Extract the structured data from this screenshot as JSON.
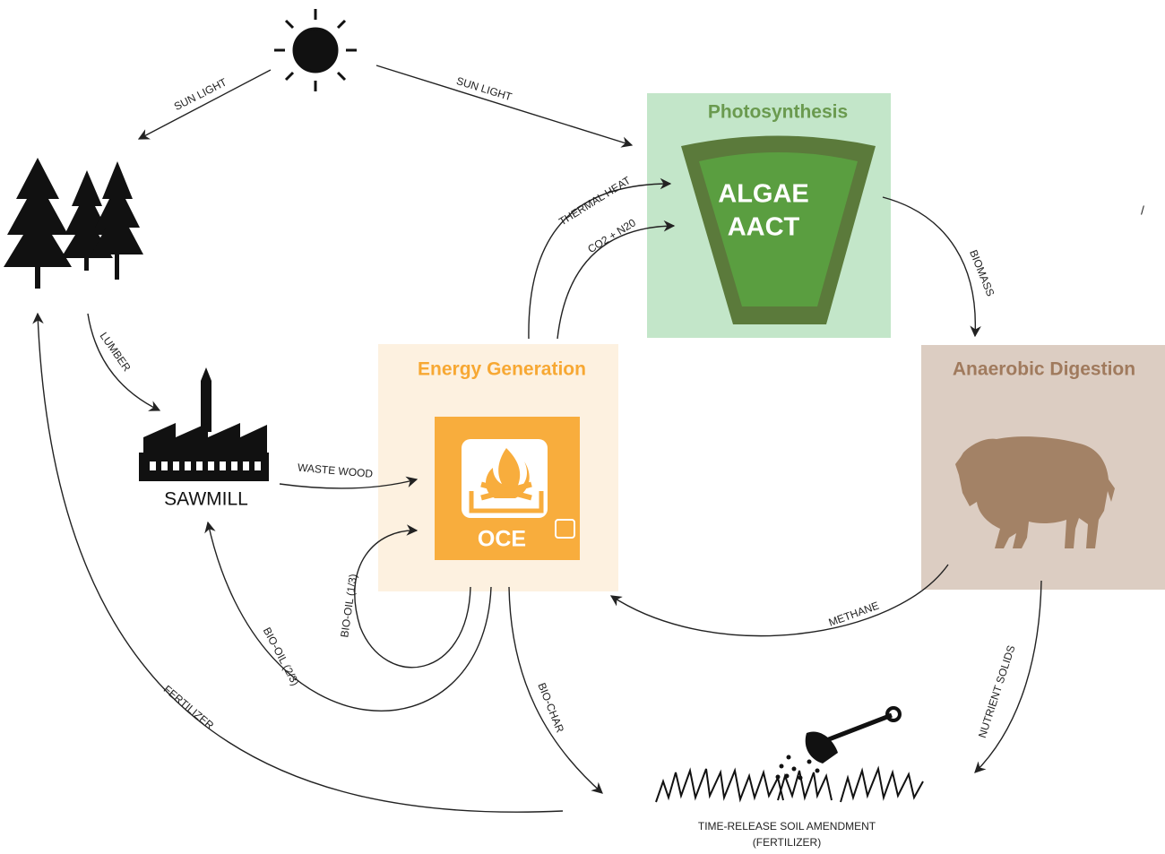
{
  "panels": {
    "photosynthesis": {
      "title": "Photosynthesis",
      "lines": [
        "ALGAE",
        "AACT"
      ]
    },
    "energy_generation": {
      "title": "Energy Generation",
      "label": "OCE"
    },
    "anaerobic_digestion": {
      "title": "Anaerobic Digestion"
    }
  },
  "nodes": {
    "sawmill": "SAWMILL",
    "soil_amendment": [
      "TIME-RELEASE SOIL AMENDMENT",
      "(FERTILIZER)"
    ]
  },
  "flows": [
    "SUN LIGHT",
    "SUN LIGHT",
    "LUMBER",
    "WASTE WOOD",
    "THERMAL HEAT",
    "CO2 + N20",
    "BIOMASS",
    "METHANE",
    "NUTRIENT SOLIDS",
    "BIO-OIL (1/3)",
    "BIO-OIL (2/3)",
    "BIO-CHAR",
    "FERTILIZER"
  ],
  "stray_mark": "/"
}
